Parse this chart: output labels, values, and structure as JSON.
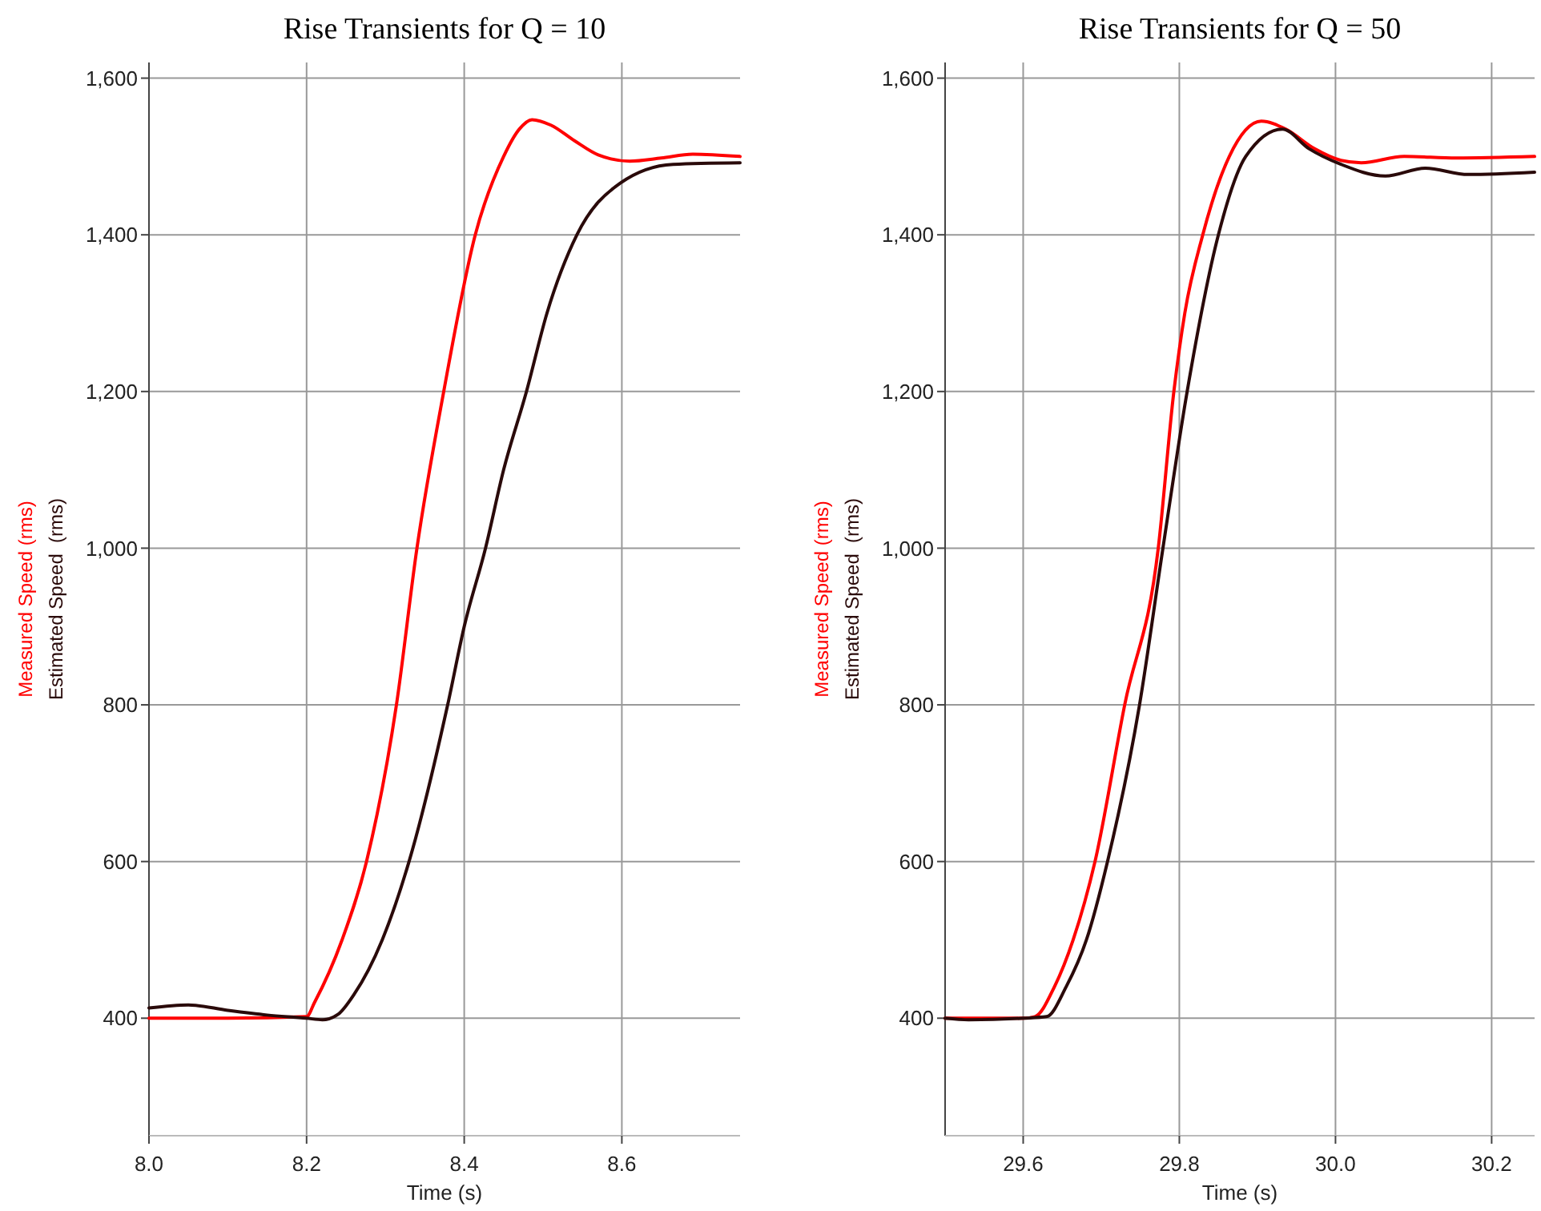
{
  "chart_data": [
    {
      "type": "line",
      "title": "Rise Transients for Q = 10",
      "xlabel": "Time (s)",
      "xlim": [
        8.0,
        8.75
      ],
      "xticks": [
        {
          "value": 8.0,
          "label": "8.0"
        },
        {
          "value": 8.2,
          "label": "8.2"
        },
        {
          "value": 8.4,
          "label": "8.4"
        },
        {
          "value": 8.6,
          "label": "8.6"
        }
      ],
      "ylim": [
        250,
        1620
      ],
      "yticks": [
        {
          "value": 400,
          "label": "400"
        },
        {
          "value": 600,
          "label": "600"
        },
        {
          "value": 800,
          "label": "800"
        },
        {
          "value": 1000,
          "label": "1,000"
        },
        {
          "value": 1200,
          "label": "1,200"
        },
        {
          "value": 1400,
          "label": "1,400"
        },
        {
          "value": 1600,
          "label": "1,600"
        }
      ],
      "grid": true,
      "series": [
        {
          "name": "Measured Speed (rms)",
          "color": "#ff0000",
          "x": [
            8.0,
            8.1,
            8.2,
            8.21,
            8.245,
            8.276,
            8.314,
            8.34,
            8.374,
            8.414,
            8.45,
            8.47,
            8.486,
            8.51,
            8.54,
            8.57,
            8.61,
            8.65,
            8.69,
            8.75
          ],
          "values": [
            400,
            400,
            402,
            420,
            500,
            600,
            800,
            1000,
            1200,
            1400,
            1500,
            1535,
            1547,
            1540,
            1520,
            1502,
            1494,
            1498,
            1503,
            1500
          ]
        },
        {
          "name": "Estimated Speed  (rms)",
          "color": "#2a0a0a",
          "x": [
            8.0,
            8.05,
            8.1,
            8.15,
            8.2,
            8.22,
            8.24,
            8.26,
            8.296,
            8.33,
            8.379,
            8.4,
            8.427,
            8.45,
            8.479,
            8.505,
            8.543,
            8.598,
            8.665,
            8.75
          ],
          "values": [
            413,
            417,
            410,
            404,
            400,
            398,
            405,
            430,
            500,
            600,
            800,
            900,
            1000,
            1100,
            1200,
            1300,
            1400,
            1466,
            1490,
            1492
          ]
        }
      ]
    },
    {
      "type": "line",
      "title": "Rise Transients for Q = 50",
      "xlabel": "Time (s)",
      "xlim": [
        29.5,
        30.255
      ],
      "xticks": [
        {
          "value": 29.6,
          "label": "29.6"
        },
        {
          "value": 29.8,
          "label": "29.8"
        },
        {
          "value": 30.0,
          "label": "30.0"
        },
        {
          "value": 30.2,
          "label": "30.2"
        }
      ],
      "ylim": [
        250,
        1620
      ],
      "yticks": [
        {
          "value": 400,
          "label": "400"
        },
        {
          "value": 600,
          "label": "600"
        },
        {
          "value": 800,
          "label": "800"
        },
        {
          "value": 1000,
          "label": "1,000"
        },
        {
          "value": 1200,
          "label": "1,200"
        },
        {
          "value": 1400,
          "label": "1,400"
        },
        {
          "value": 1600,
          "label": "1,600"
        }
      ],
      "grid": true,
      "series": [
        {
          "name": "Measured Speed (rms)",
          "color": "#ff0000",
          "x": [
            29.5,
            29.55,
            29.6,
            29.615,
            29.64,
            29.664,
            29.692,
            29.73,
            29.773,
            29.793,
            29.807,
            29.83,
            29.864,
            29.905,
            29.936,
            29.973,
            30.007,
            30.033,
            30.088,
            30.155,
            30.255
          ],
          "values": [
            400,
            400,
            400,
            402,
            440,
            500,
            600,
            800,
            1000,
            1200,
            1300,
            1400,
            1500,
            1545,
            1535,
            1510,
            1495,
            1492,
            1500,
            1498,
            1500
          ]
        },
        {
          "name": "Estimated Speed  (rms)",
          "color": "#2a0a0a",
          "x": [
            29.5,
            29.53,
            29.6,
            29.63,
            29.655,
            29.681,
            29.708,
            29.749,
            29.779,
            29.81,
            29.85,
            29.885,
            29.932,
            29.966,
            30.007,
            30.064,
            30.115,
            30.17,
            30.255
          ],
          "values": [
            400,
            398,
            400,
            402,
            440,
            500,
            600,
            800,
            1000,
            1200,
            1400,
            1500,
            1535,
            1510,
            1490,
            1475,
            1485,
            1477,
            1480
          ]
        }
      ]
    }
  ]
}
